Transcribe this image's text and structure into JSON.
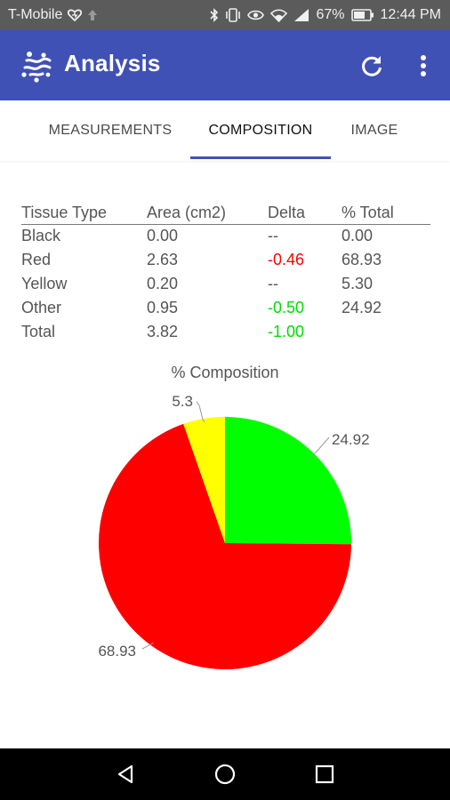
{
  "status_bar": {
    "carrier": "T-Mobile",
    "battery": "67%",
    "time": "12:44 PM",
    "icons": [
      "heart-icon",
      "upload-arrow-icon",
      "bluetooth-icon",
      "vibrate-icon",
      "eye-icon",
      "wifi-icon",
      "signal-icon",
      "battery-icon"
    ]
  },
  "app_bar": {
    "title": "Analysis",
    "logo_icon": "analysis-logo-icon",
    "actions": [
      "refresh-icon",
      "more-vert-icon"
    ]
  },
  "tabs": [
    {
      "label": "MEASUREMENTS",
      "active": false
    },
    {
      "label": "COMPOSITION",
      "active": true
    },
    {
      "label": "IMAGE",
      "active": false
    }
  ],
  "table": {
    "headers": [
      "Tissue Type",
      "Area (cm2)",
      "Delta",
      "% Total"
    ],
    "rows": [
      {
        "type": "Black",
        "area": "0.00",
        "delta": "--",
        "total": "0.00"
      },
      {
        "type": "Red",
        "area": "2.63",
        "delta": "-0.46",
        "total": "68.93"
      },
      {
        "type": "Yellow",
        "area": "0.20",
        "delta": "--",
        "total": "5.30"
      },
      {
        "type": "Other",
        "area": "0.95",
        "delta": "-0.50",
        "total": "24.92"
      },
      {
        "type": "Total",
        "area": "3.82",
        "delta": "-1.00",
        "total": ""
      }
    ],
    "colors": {
      "negative_red": "#ff0000",
      "negative_green": "#00dd00"
    }
  },
  "chart_data": {
    "type": "pie",
    "title": "% Composition",
    "slices": [
      {
        "label": "24.92",
        "value": 24.92,
        "color": "#00ff00"
      },
      {
        "label": "68.93",
        "value": 68.93,
        "color": "#ff0000"
      },
      {
        "label": "5.3",
        "value": 5.3,
        "color": "#ffff00"
      }
    ],
    "start": "12 o'clock",
    "direction": "clockwise",
    "legend": "none"
  },
  "nav_bar": {
    "buttons": [
      "back-icon",
      "home-icon",
      "recents-icon"
    ]
  }
}
